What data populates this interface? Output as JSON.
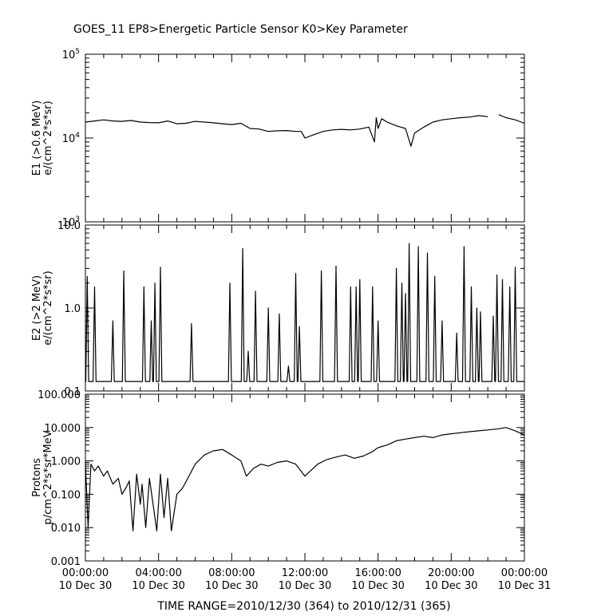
{
  "title": "GOES_11  EP8>Energetic Particle Sensor  K0>Key Parameter",
  "time_range": "TIME RANGE=2010/12/30 (364) to 2010/12/31 (365)",
  "chart_data": [
    {
      "type": "line",
      "ylabel_lines": [
        "E1 (>0.6 MeV)",
        "e/(cm^2*s*sr)"
      ],
      "yscale": "log",
      "ylim": [
        1000,
        100000
      ],
      "yticks": [
        {
          "value": 1000,
          "base": "10",
          "exp": "3"
        },
        {
          "value": 10000,
          "base": "10",
          "exp": "4"
        },
        {
          "value": 100000,
          "base": "10",
          "exp": "5"
        }
      ],
      "x": [
        0,
        0.5,
        1,
        1.5,
        2,
        2.5,
        3,
        3.5,
        4,
        4.5,
        5,
        5.5,
        6,
        6.5,
        7,
        7.5,
        8,
        8.5,
        9,
        9.5,
        10,
        10.5,
        11,
        11.5,
        11.8,
        12,
        12.5,
        13,
        13.5,
        14,
        14.5,
        15,
        15.5,
        15.8,
        15.9,
        16,
        16.2,
        16.5,
        17,
        17.5,
        17.8,
        18,
        18.5,
        19,
        19.5,
        20,
        20.5,
        21,
        21.5,
        22,
        22.4,
        22.6,
        23,
        23.5,
        24
      ],
      "values": [
        15500,
        16000,
        16500,
        16000,
        15800,
        16200,
        15500,
        15300,
        15200,
        16000,
        14800,
        15000,
        15800,
        15500,
        15200,
        14800,
        14500,
        15000,
        13000,
        12800,
        12000,
        12200,
        12300,
        12000,
        12000,
        10000,
        11000,
        12000,
        12500,
        12700,
        12500,
        12800,
        13500,
        9000,
        17500,
        13000,
        17000,
        15500,
        14000,
        13000,
        8000,
        11500,
        13500,
        15500,
        16500,
        17000,
        17500,
        17800,
        18500,
        18000,
        null,
        19000,
        17500,
        16500,
        15000
      ]
    },
    {
      "type": "line",
      "ylabel_lines": [
        "E2 (>2 MeV)",
        "e/(cm^2*s*sr)"
      ],
      "yscale": "log",
      "ylim": [
        0.1,
        10.0
      ],
      "yticks": [
        {
          "value": 0.1,
          "label": "0.1"
        },
        {
          "value": 1.0,
          "label": "1.0"
        },
        {
          "value": 10.0,
          "label": "10.0"
        }
      ],
      "baseline": 0.13,
      "spikes": [
        [
          0.1,
          2.4
        ],
        [
          0.5,
          1.8
        ],
        [
          1.5,
          0.7
        ],
        [
          2.1,
          2.8
        ],
        [
          3.2,
          1.8
        ],
        [
          3.6,
          0.7
        ],
        [
          3.8,
          2.0
        ],
        [
          4.1,
          3.1
        ],
        [
          5.8,
          0.65
        ],
        [
          7.9,
          2.0
        ],
        [
          8.6,
          5.2
        ],
        [
          8.9,
          0.3
        ],
        [
          9.3,
          1.6
        ],
        [
          10.0,
          1.0
        ],
        [
          10.6,
          0.85
        ],
        [
          11.1,
          0.2
        ],
        [
          11.5,
          2.6
        ],
        [
          11.7,
          0.6
        ],
        [
          12.9,
          2.8
        ],
        [
          13.7,
          3.2
        ],
        [
          14.5,
          1.8
        ],
        [
          14.8,
          1.8
        ],
        [
          15.0,
          2.2
        ],
        [
          15.7,
          1.8
        ],
        [
          16.0,
          0.7
        ],
        [
          17.0,
          3.0
        ],
        [
          17.3,
          2.0
        ],
        [
          17.5,
          1.5
        ],
        [
          17.7,
          6.0
        ],
        [
          18.2,
          5.5
        ],
        [
          18.7,
          4.6
        ],
        [
          19.1,
          2.4
        ],
        [
          19.5,
          0.7
        ],
        [
          20.3,
          0.5
        ],
        [
          20.7,
          5.5
        ],
        [
          21.1,
          1.8
        ],
        [
          21.4,
          1.0
        ],
        [
          21.6,
          0.9
        ],
        [
          22.3,
          0.8
        ],
        [
          22.5,
          2.5
        ],
        [
          22.8,
          2.2
        ],
        [
          23.2,
          1.8
        ],
        [
          23.5,
          3.1
        ]
      ]
    },
    {
      "type": "line",
      "ylabel_lines": [
        "Protons",
        "p/cm^2*s*sr*MeV"
      ],
      "yscale": "log",
      "ylim": [
        0.001,
        100.0
      ],
      "yticks": [
        {
          "value": 0.001,
          "label": "0.001"
        },
        {
          "value": 0.01,
          "label": "0.010"
        },
        {
          "value": 0.1,
          "label": "0.100"
        },
        {
          "value": 1.0,
          "label": "1.000"
        },
        {
          "value": 10.0,
          "label": "10.000"
        },
        {
          "value": 100.0,
          "label": "100.000"
        }
      ],
      "x": [
        0,
        0.15,
        0.3,
        0.5,
        0.7,
        1.0,
        1.2,
        1.5,
        1.8,
        2.0,
        2.2,
        2.4,
        2.6,
        2.8,
        3.0,
        3.1,
        3.3,
        3.5,
        3.7,
        3.9,
        4.1,
        4.3,
        4.5,
        4.7,
        5.0,
        5.3,
        5.6,
        6.0,
        6.5,
        7.0,
        7.5,
        8.0,
        8.5,
        8.8,
        9.2,
        9.6,
        10.0,
        10.5,
        11.0,
        11.5,
        12.0,
        12.3,
        12.7,
        13.2,
        13.7,
        14.2,
        14.7,
        15.2,
        15.7,
        16.0,
        16.5,
        17.0,
        17.5,
        18.0,
        18.5,
        19.0,
        19.5,
        20.0,
        20.5,
        21.0,
        21.5,
        22.0,
        22.5,
        23.0,
        23.5,
        24.0
      ],
      "values": [
        0.9,
        0.01,
        0.8,
        0.5,
        0.7,
        0.35,
        0.5,
        0.2,
        0.3,
        0.1,
        0.15,
        0.25,
        0.008,
        0.4,
        0.05,
        0.2,
        0.01,
        0.3,
        0.05,
        0.008,
        0.4,
        0.02,
        0.3,
        0.008,
        0.1,
        0.15,
        0.3,
        0.8,
        1.5,
        2.0,
        2.2,
        1.5,
        1.0,
        0.35,
        0.6,
        0.8,
        0.7,
        0.9,
        1.0,
        0.8,
        0.35,
        0.5,
        0.8,
        1.1,
        1.3,
        1.5,
        1.2,
        1.4,
        1.9,
        2.5,
        3.0,
        4.0,
        4.5,
        5.0,
        5.5,
        5.0,
        6.0,
        6.5,
        7.0,
        7.5,
        8.0,
        8.5,
        9.0,
        10.0,
        8.0,
        6.0
      ]
    }
  ],
  "x_axis": {
    "range": [
      0,
      24
    ],
    "ticks": [
      {
        "hour": 0,
        "time": "00:00:00",
        "date": "10 Dec 30"
      },
      {
        "hour": 4,
        "time": "04:00:00",
        "date": "10 Dec 30"
      },
      {
        "hour": 8,
        "time": "08:00:00",
        "date": "10 Dec 30"
      },
      {
        "hour": 12,
        "time": "12:00:00",
        "date": "10 Dec 30"
      },
      {
        "hour": 16,
        "time": "16:00:00",
        "date": "10 Dec 30"
      },
      {
        "hour": 20,
        "time": "20:00:00",
        "date": "10 Dec 30"
      },
      {
        "hour": 24,
        "time": "00:00:00",
        "date": "10 Dec 31"
      }
    ]
  }
}
